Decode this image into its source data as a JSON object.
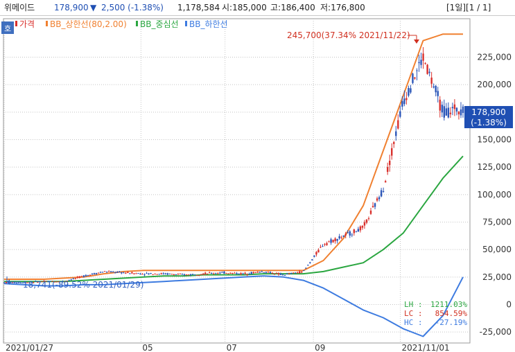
{
  "header": {
    "stock_name": "위메이드",
    "price": "178,900",
    "change_arrow": "▼",
    "change": "2,500 (-1.38%)",
    "volume": "1,178,584",
    "open": "시:185,000",
    "high": "고:186,400",
    "low": "저:176,800",
    "period": "[1일][1 / 1]"
  },
  "chart_button": "호",
  "legend": [
    "가격",
    "BB_상한선(80,2.00)",
    "BB_중심선",
    "BB_하한선"
  ],
  "colors": {
    "candle_up": "#d9302c",
    "candle_down": "#2a55b8",
    "upper": "#f08030",
    "middle": "#2aa640",
    "lower": "#3d7be0",
    "price_box": "#1f4fb3",
    "annotation_high": "#d03020",
    "annotation_low": "#2f5fbf"
  },
  "annotations": {
    "high": "245,700(37.34% 2021/11/22)",
    "low": "18,741(-89.52% 2021/01/29)",
    "last_price": "178,900",
    "last_change": "(-1.38%)",
    "lh_label": "LH :",
    "lh_value": "1211.03%",
    "lc_label": "LC :",
    "lc_value": "854.59%",
    "hc_label": "HC :",
    "hc_value": "-27.19%"
  },
  "chart_data": {
    "type": "candlestick",
    "y_ticks": [
      "225,000",
      "200,000",
      "175,000",
      "150,000",
      "125,000",
      "100,000",
      "75,000",
      "50,000",
      "25,000",
      "0",
      "-25,000"
    ],
    "x_ticks": [
      "2021/01/27",
      "05",
      "07",
      "09",
      "2021/11/01"
    ],
    "ylim": [
      -35000,
      260000
    ],
    "x": [
      "2021-01-27",
      "2021-02-10",
      "2021-02-24",
      "2021-03-10",
      "2021-03-24",
      "2021-04-07",
      "2021-04-21",
      "2021-05-05",
      "2021-05-19",
      "2021-06-02",
      "2021-06-16",
      "2021-06-30",
      "2021-07-14",
      "2021-07-28",
      "2021-08-11",
      "2021-08-25",
      "2021-09-08",
      "2021-09-22",
      "2021-10-06",
      "2021-10-20",
      "2021-11-03",
      "2021-11-17",
      "2021-12-01",
      "2021-12-15"
    ],
    "series": [
      {
        "name": "가격",
        "values": [
          20000,
          20000,
          21000,
          21000,
          26000,
          30000,
          29000,
          28000,
          28000,
          27000,
          28000,
          29000,
          28000,
          30000,
          27000,
          30000,
          55000,
          62000,
          70000,
          105000,
          185000,
          225000,
          175000,
          178900
        ]
      },
      {
        "name": "BB_상한선(80,2.00)",
        "values": [
          23000,
          23000,
          23000,
          24000,
          25000,
          28000,
          30000,
          31000,
          31000,
          31000,
          31000,
          31000,
          31000,
          31000,
          31000,
          31000,
          40000,
          60000,
          90000,
          140000,
          190000,
          240000,
          246000,
          246000
        ]
      },
      {
        "name": "BB_중심선",
        "values": [
          21000,
          21000,
          21000,
          21000,
          22000,
          23000,
          24000,
          25000,
          26000,
          26000,
          27000,
          27000,
          27000,
          28000,
          28000,
          28000,
          30000,
          34000,
          38000,
          50000,
          65000,
          90000,
          115000,
          135000
        ]
      },
      {
        "name": "BB_하한선",
        "values": [
          19000,
          18000,
          17000,
          17000,
          18000,
          18000,
          19000,
          20000,
          21000,
          22000,
          23000,
          24000,
          25000,
          26000,
          25000,
          22000,
          15000,
          5000,
          -5000,
          -12000,
          -22000,
          -29000,
          -10000,
          25000
        ]
      }
    ]
  }
}
